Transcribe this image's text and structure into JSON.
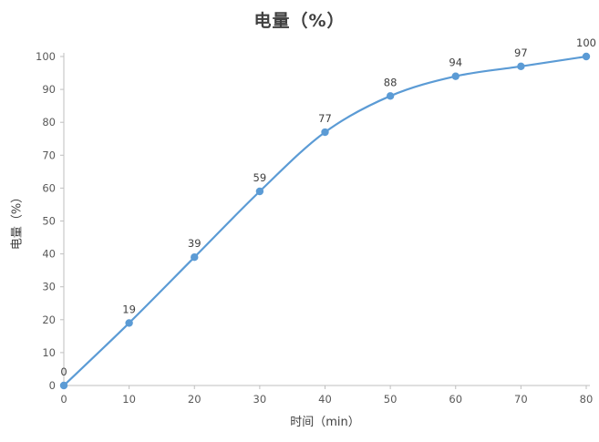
{
  "page": {
    "title": "电量（%）"
  },
  "chart_data": {
    "type": "line",
    "title": "电量（%）",
    "xlabel": "时间（min）",
    "ylabel": "电量（%）",
    "x": [
      0,
      10,
      20,
      30,
      40,
      50,
      60,
      70,
      80
    ],
    "series": [
      {
        "name": "电量",
        "values": [
          0,
          19,
          39,
          59,
          77,
          88,
          94,
          97,
          100
        ]
      }
    ],
    "data_labels": [
      0,
      19,
      39,
      59,
      77,
      88,
      94,
      97,
      100
    ],
    "xlim": [
      0,
      80
    ],
    "ylim": [
      0,
      100
    ],
    "x_ticks": [
      0,
      10,
      20,
      30,
      40,
      50,
      60,
      70,
      80
    ],
    "y_ticks": [
      0,
      10,
      20,
      30,
      40,
      50,
      60,
      70,
      80,
      90,
      100
    ],
    "grid": false,
    "legend": "none",
    "smooth": true,
    "colors": {
      "line": "#5B9BD5",
      "marker": "#5B9BD5",
      "axis": "#BFBFBF",
      "tick_label": "#595959",
      "data_label": "#404040",
      "title": "#404040",
      "background": "#ffffff"
    }
  }
}
